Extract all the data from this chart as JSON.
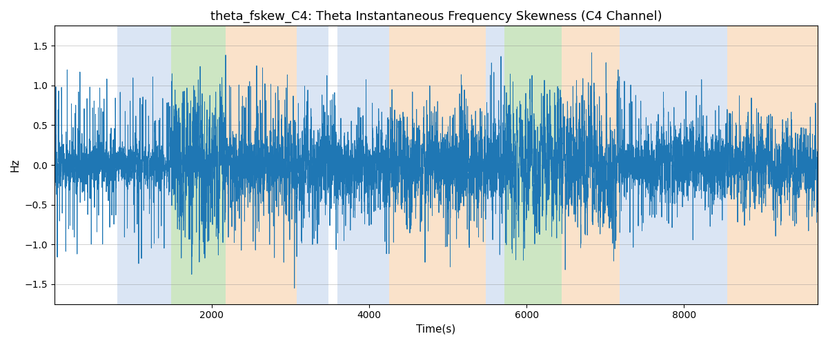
{
  "title": "theta_fskew_C4: Theta Instantaneous Frequency Skewness (C4 Channel)",
  "xlabel": "Time(s)",
  "ylabel": "Hz",
  "xlim": [
    0,
    9700
  ],
  "ylim": [
    -1.75,
    1.75
  ],
  "yticks": [
    -1.5,
    -1.0,
    -0.5,
    0.0,
    0.5,
    1.0,
    1.5
  ],
  "xticks": [
    2000,
    4000,
    6000,
    8000
  ],
  "line_color": "#1f77b4",
  "line_width": 0.7,
  "background_color": "#ffffff",
  "regions": [
    {
      "xmin": 800,
      "xmax": 1480,
      "color": "#aec6e8",
      "alpha": 0.45
    },
    {
      "xmin": 1480,
      "xmax": 2180,
      "color": "#90c97a",
      "alpha": 0.45
    },
    {
      "xmin": 2180,
      "xmax": 3080,
      "color": "#f5c08a",
      "alpha": 0.45
    },
    {
      "xmin": 3080,
      "xmax": 3480,
      "color": "#aec6e8",
      "alpha": 0.45
    },
    {
      "xmin": 3600,
      "xmax": 4250,
      "color": "#aec6e8",
      "alpha": 0.45
    },
    {
      "xmin": 4250,
      "xmax": 5480,
      "color": "#f5c08a",
      "alpha": 0.45
    },
    {
      "xmin": 5480,
      "xmax": 5720,
      "color": "#aec6e8",
      "alpha": 0.45
    },
    {
      "xmin": 5720,
      "xmax": 6450,
      "color": "#90c97a",
      "alpha": 0.45
    },
    {
      "xmin": 6450,
      "xmax": 7180,
      "color": "#f5c08a",
      "alpha": 0.45
    },
    {
      "xmin": 7180,
      "xmax": 7520,
      "color": "#aec6e8",
      "alpha": 0.45
    },
    {
      "xmin": 7520,
      "xmax": 8550,
      "color": "#aec6e8",
      "alpha": 0.45
    },
    {
      "xmin": 8550,
      "xmax": 9700,
      "color": "#f5c08a",
      "alpha": 0.45
    }
  ],
  "segments": [
    {
      "xstart": 0,
      "xend": 800,
      "style": "spiky_high",
      "spike_rate": 18,
      "base_std": 0.15,
      "spike_amp": 1.1
    },
    {
      "xstart": 800,
      "xend": 1480,
      "style": "spiky_high",
      "spike_rate": 18,
      "base_std": 0.12,
      "spike_amp": 1.1
    },
    {
      "xstart": 1480,
      "xend": 2180,
      "style": "dense_mid",
      "spike_rate": 12,
      "base_std": 0.3,
      "spike_amp": 0.9
    },
    {
      "xstart": 2180,
      "xend": 3080,
      "style": "spiky_high",
      "spike_rate": 15,
      "base_std": 0.2,
      "spike_amp": 1.0
    },
    {
      "xstart": 3080,
      "xend": 3480,
      "style": "dense_low",
      "spike_rate": 20,
      "base_std": 0.25,
      "spike_amp": 0.85
    },
    {
      "xstart": 3480,
      "xend": 3600,
      "style": "dense_low",
      "spike_rate": 20,
      "base_std": 0.25,
      "spike_amp": 0.85
    },
    {
      "xstart": 3600,
      "xend": 4250,
      "style": "dense_low",
      "spike_rate": 20,
      "base_std": 0.2,
      "spike_amp": 0.85
    },
    {
      "xstart": 4250,
      "xend": 5480,
      "style": "dense_low",
      "spike_rate": 20,
      "base_std": 0.25,
      "spike_amp": 0.85
    },
    {
      "xstart": 5480,
      "xend": 5720,
      "style": "spiky_high",
      "spike_rate": 15,
      "base_std": 0.2,
      "spike_amp": 1.05
    },
    {
      "xstart": 5720,
      "xend": 6450,
      "style": "dense_mid",
      "spike_rate": 12,
      "base_std": 0.25,
      "spike_amp": 0.9
    },
    {
      "xstart": 6450,
      "xend": 7180,
      "style": "dense_mid",
      "spike_rate": 14,
      "base_std": 0.25,
      "spike_amp": 0.95
    },
    {
      "xstart": 7180,
      "xend": 7520,
      "style": "spiky_high",
      "spike_rate": 16,
      "base_std": 0.15,
      "spike_amp": 1.0
    },
    {
      "xstart": 7520,
      "xend": 8550,
      "style": "dense_low",
      "spike_rate": 22,
      "base_std": 0.2,
      "spike_amp": 0.75
    },
    {
      "xstart": 8550,
      "xend": 9700,
      "style": "dense_low",
      "spike_rate": 22,
      "base_std": 0.2,
      "spike_amp": 0.7
    }
  ],
  "seed": 7,
  "title_fontsize": 13
}
